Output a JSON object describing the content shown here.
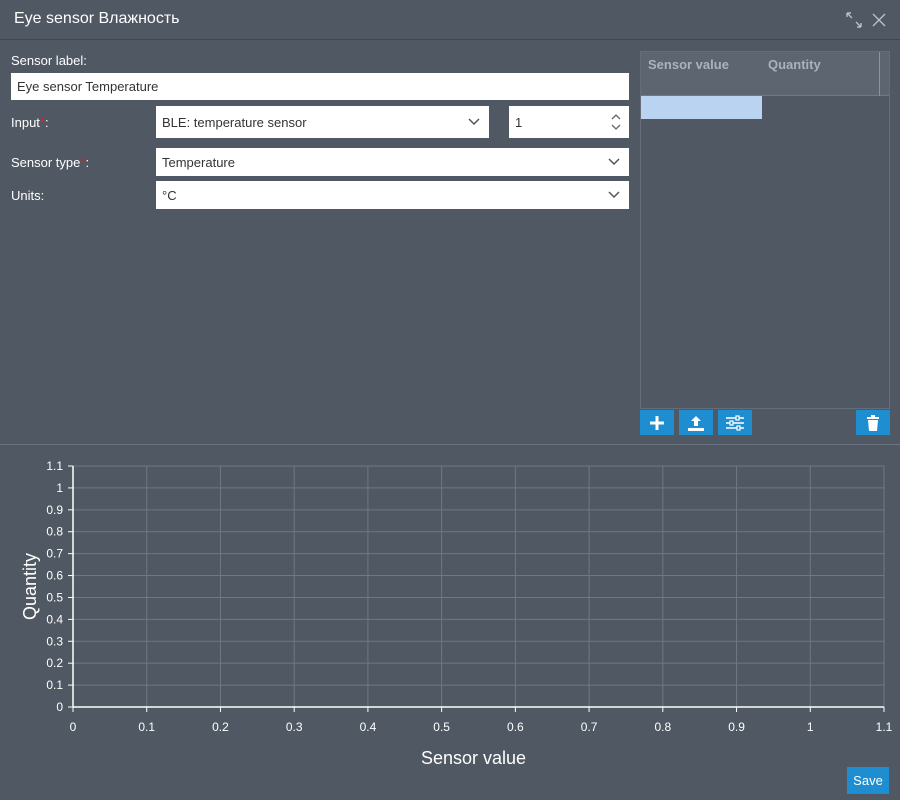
{
  "window": {
    "title": "Eye sensor Влажность",
    "maximize_icon": "expand-arrows-icon",
    "close_icon": "close-x-icon"
  },
  "form": {
    "sensor_label": {
      "label": "Sensor label:",
      "value": "Eye sensor Temperature"
    },
    "input": {
      "label": "Input",
      "required_mark": "*",
      "suffix": ":",
      "value": "BLE: temperature sensor",
      "number_value": "1"
    },
    "sensor_type": {
      "label": "Sensor type",
      "required_mark": "*",
      "suffix": ":",
      "value": "Temperature"
    },
    "units": {
      "label": "Units:",
      "value": "°C"
    }
  },
  "table": {
    "columns": [
      "Sensor value",
      "Quantity"
    ],
    "rows": [
      [
        "",
        ""
      ]
    ],
    "buttons": [
      {
        "name": "add-row-button",
        "icon": "plus-icon"
      },
      {
        "name": "upload-button",
        "icon": "upload-icon"
      },
      {
        "name": "settings-button",
        "icon": "sliders-icon"
      },
      {
        "name": "delete-button",
        "icon": "trash-icon"
      }
    ]
  },
  "chart_data": {
    "type": "line",
    "xlabel": "Sensor value",
    "ylabel": "Quantity",
    "xlim": [
      0,
      1.1
    ],
    "ylim": [
      0,
      1.1
    ],
    "xticks": [
      "0",
      "0.1",
      "0.2",
      "0.3",
      "0.4",
      "0.5",
      "0.6",
      "0.7",
      "0.8",
      "0.9",
      "1",
      "1.1"
    ],
    "yticks": [
      "0",
      "0.1",
      "0.2",
      "0.3",
      "0.4",
      "0.5",
      "0.6",
      "0.7",
      "0.8",
      "0.9",
      "1",
      "1.1"
    ],
    "grid": true,
    "series": []
  },
  "footer": {
    "save_label": "Save"
  },
  "colors": {
    "background": "#4f5863",
    "accent": "#1e8ed1",
    "required": "#d12a2a",
    "selection": "#b9d3f0"
  }
}
